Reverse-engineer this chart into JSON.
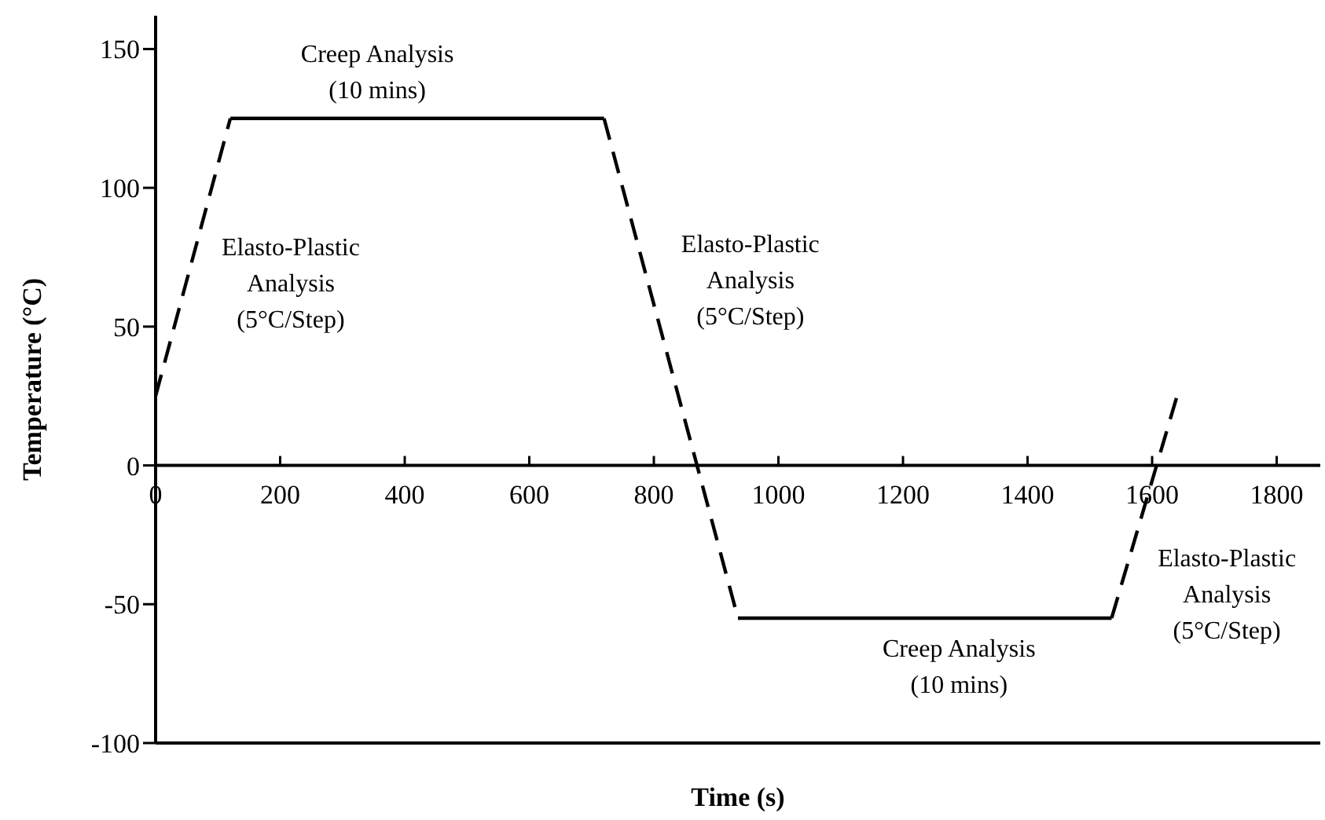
{
  "chart_data": {
    "type": "line",
    "xlabel": "Time (s)",
    "ylabel": "Temperature (°C)",
    "xlim": [
      0,
      1870
    ],
    "ylim": [
      -100,
      162
    ],
    "xticks": [
      0,
      200,
      400,
      600,
      800,
      1000,
      1200,
      1400,
      1600,
      1800
    ],
    "yticks": [
      -100,
      -50,
      0,
      50,
      100,
      150
    ],
    "grid": false,
    "series": [
      {
        "color": "#000000",
        "line_style": "dashed",
        "x": [
          0,
          120
        ],
        "values": [
          25,
          125
        ]
      },
      {
        "color": "#000000",
        "line_style": "solid",
        "x": [
          120,
          720
        ],
        "values": [
          125,
          125
        ]
      },
      {
        "color": "#000000",
        "line_style": "dashed",
        "x": [
          720,
          935
        ],
        "values": [
          125,
          -55
        ]
      },
      {
        "color": "#000000",
        "line_style": "solid",
        "x": [
          935,
          1535
        ],
        "values": [
          -55,
          -55
        ]
      },
      {
        "color": "#000000",
        "line_style": "dashed",
        "x": [
          1535,
          1640
        ],
        "values": [
          -55,
          25
        ]
      }
    ],
    "annotations": [
      "Creep Analysis\n(10 mins)",
      "Elasto-Plastic\nAnalysis\n(5°C/Step)",
      "Elasto-Plastic\nAnalysis\n(5°C/Step)",
      "Creep Analysis\n(10 mins)",
      "Elasto-Plastic\nAnalysis\n(5°C/Step)"
    ]
  }
}
